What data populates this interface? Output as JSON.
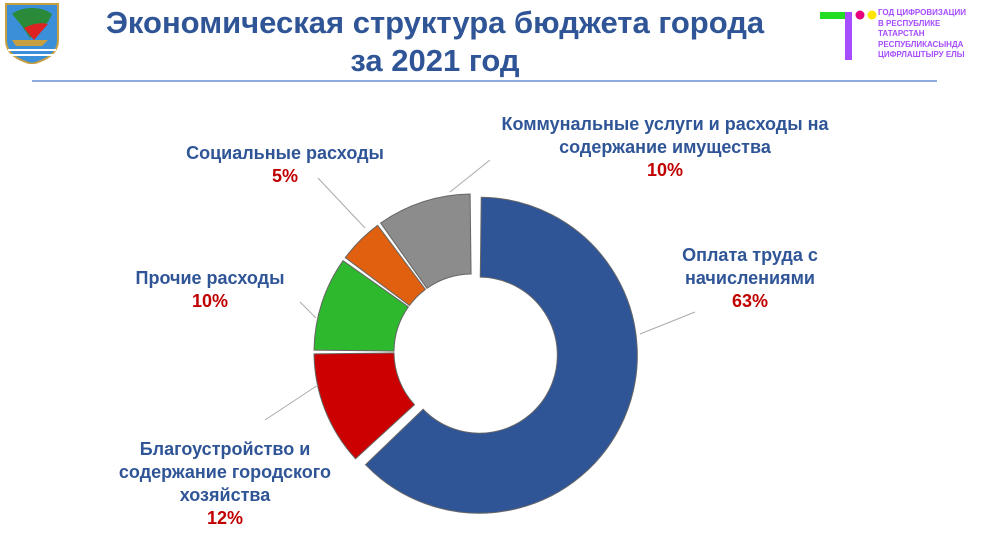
{
  "header": {
    "title_line1": "Экономическая структура бюджета города",
    "title_line2": "за 2021 год"
  },
  "logo": {
    "lines": [
      "ГОД ЦИФРОВИЗАЦИИ",
      "В РЕСПУБЛИКЕ",
      "ТАТАРСТАН",
      "РЕСПУБЛИКАСЫНДА",
      "ЦИФРЛАШТЫРУ ЕЛЫ"
    ],
    "colors": {
      "bar": "#22dd22",
      "stem": "#a64dff",
      "dot1": "#e6007e",
      "dot2": "#ffe600"
    }
  },
  "chart_data": {
    "type": "pie",
    "donut": true,
    "title": "Экономическая структура бюджета города за 2021 год",
    "slices": [
      {
        "name": "Оплата труда с начислениями",
        "value": 63,
        "label": "63%",
        "color": "#2f5597"
      },
      {
        "name": "Благоустройство и содержание городского хозяйства",
        "value": 12,
        "label": "12%",
        "color": "#cc0000"
      },
      {
        "name": "Прочие расходы",
        "value": 10,
        "label": "10%",
        "color": "#2eb82e"
      },
      {
        "name": "Социальные расходы",
        "value": 5,
        "label": "5%",
        "color": "#e06010"
      },
      {
        "name": "Коммунальные услуги и расходы на содержание имущества",
        "value": 10,
        "label": "10%",
        "color": "#8c8c8c"
      }
    ]
  }
}
